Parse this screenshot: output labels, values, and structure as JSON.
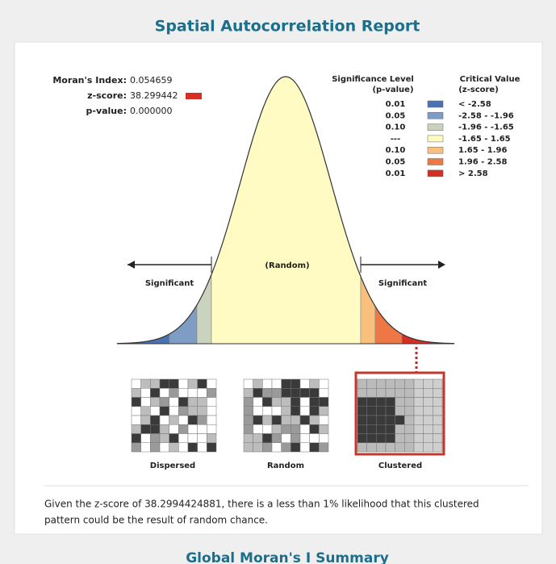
{
  "title": "Spatial Autocorrelation Report",
  "stats": [
    {
      "label": "Moran's Index:",
      "value": "0.054659"
    },
    {
      "label": "z-score:",
      "value": "38.299442"
    },
    {
      "label": "p-value:",
      "value": "0.000000"
    }
  ],
  "legend": {
    "p_header": "Significance Level",
    "p_sub": "(p-value)",
    "z_header": "Critical Value",
    "z_sub": "(z-score)",
    "rows": [
      {
        "p": "0.01",
        "z": "< -2.58",
        "color": "#4a72b0"
      },
      {
        "p": "0.05",
        "z": "-2.58 - -1.96",
        "color": "#7f9cc4"
      },
      {
        "p": "0.10",
        "z": "-1.96 - -1.65",
        "color": "#c9d3bd"
      },
      {
        "p": "---",
        "z": "-1.65 - 1.65",
        "color": "#fffbc2"
      },
      {
        "p": "0.10",
        "z": "1.65 - 1.96",
        "color": "#f8bf7d"
      },
      {
        "p": "0.05",
        "z": "1.96 - 2.58",
        "color": "#ee7746"
      },
      {
        "p": "0.01",
        "z": "> 2.58",
        "color": "#d42f22"
      }
    ]
  },
  "curve": {
    "center_label": "(Random)",
    "left_label": "Significant",
    "right_label": "Significant"
  },
  "patterns": [
    "Dispersed",
    "Random",
    "Clustered"
  ],
  "description": [
    "Given the z-score of 38.2994424881, there is a less than 1% likelihood that this clustered",
    "pattern could be the result of random chance."
  ],
  "next_section": "Global Moran's I Summary"
}
